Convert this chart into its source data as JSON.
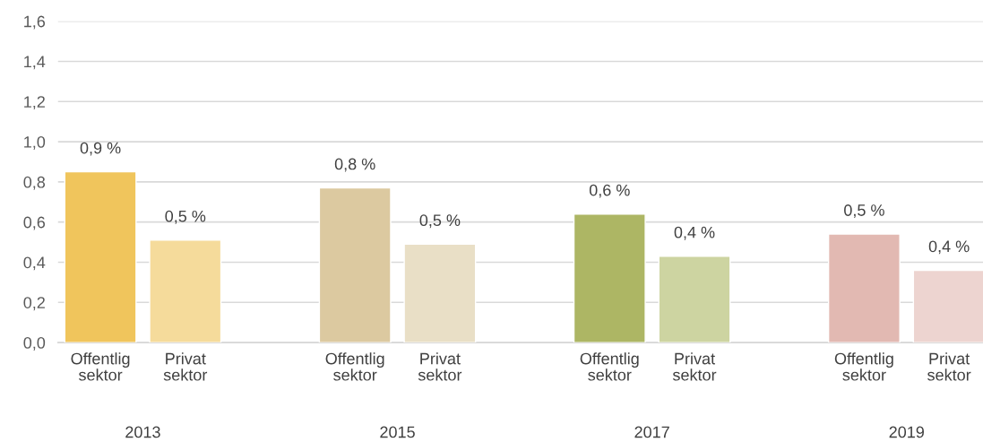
{
  "chart_data": {
    "type": "bar",
    "categories": [
      "Offentlig\nsektor",
      "Privat\nsektor",
      "Offentlig\nsektor",
      "Privat\nsektor",
      "Offentlig\nsektor",
      "Privat\nsektor",
      "Offentlig\nsektor",
      "Privat\nsektor"
    ],
    "values": [
      0.85,
      0.51,
      0.77,
      0.49,
      0.64,
      0.43,
      0.54,
      0.36
    ],
    "value_labels": [
      "0,9 %",
      "0,5 %",
      "0,8 %",
      "0,5 %",
      "0,6 %",
      "0,4 %",
      "0,5 %",
      "0,4 %"
    ],
    "colors": [
      "#f0c55c",
      "#f5db9b",
      "#dcc9a0",
      "#e9dfc6",
      "#adb664",
      "#cdd4a1",
      "#e2b9b2",
      "#edd4d0"
    ],
    "annotations": [
      "2013",
      "2015",
      "2017",
      "2019"
    ],
    "ylim": [
      0,
      1.6
    ],
    "yticks": [
      {
        "value": 0,
        "label": "0,0"
      },
      {
        "value": 0.2,
        "label": "0,2"
      },
      {
        "value": 0.4,
        "label": "0,4"
      },
      {
        "value": 0.6,
        "label": "0,6"
      },
      {
        "value": 0.8,
        "label": "0,8"
      },
      {
        "value": 1.0,
        "label": "1,0"
      },
      {
        "value": 1.2,
        "label": "1,2"
      },
      {
        "value": 1.4,
        "label": "1,4"
      },
      {
        "value": 1.6,
        "label": "1,6"
      }
    ],
    "grid": "y",
    "legend": false
  }
}
